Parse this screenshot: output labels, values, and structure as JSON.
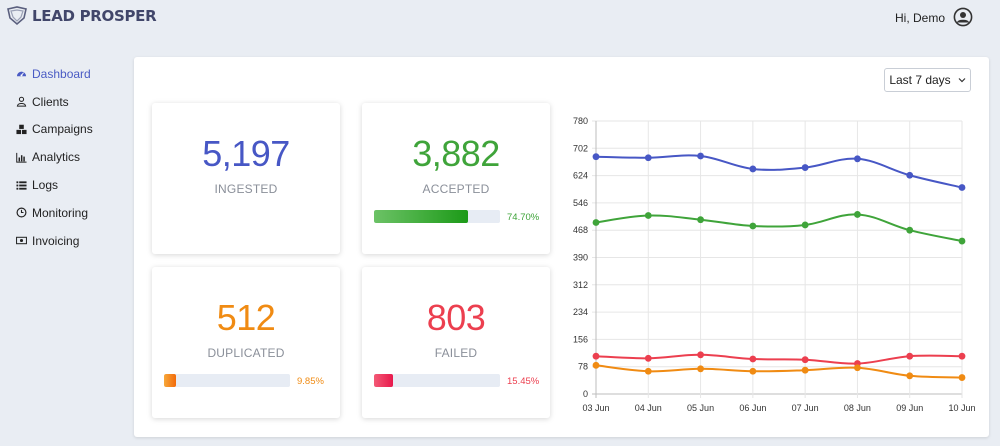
{
  "brand": {
    "name": "LEAD PROSPER"
  },
  "header": {
    "greeting": "Hi, Demo",
    "user_icon": "user-circle-icon"
  },
  "sidebar": {
    "items": [
      {
        "label": "Dashboard",
        "icon": "dashboard-icon",
        "active": true
      },
      {
        "label": "Clients",
        "icon": "user-icon",
        "active": false
      },
      {
        "label": "Campaigns",
        "icon": "cubes-icon",
        "active": false
      },
      {
        "label": "Analytics",
        "icon": "bar-chart-icon",
        "active": false
      },
      {
        "label": "Logs",
        "icon": "list-icon",
        "active": false
      },
      {
        "label": "Monitoring",
        "icon": "clock-icon",
        "active": false
      },
      {
        "label": "Invoicing",
        "icon": "money-icon",
        "active": false
      }
    ]
  },
  "filters": {
    "date_range": "Last 7 days"
  },
  "cards": {
    "ingested": {
      "value": "5,197",
      "label": "INGESTED",
      "color": "#4757c5"
    },
    "accepted": {
      "value": "3,882",
      "label": "ACCEPTED",
      "color": "#3fa43a",
      "percent": "74.70%",
      "fraction": 0.747
    },
    "duplicated": {
      "value": "512",
      "label": "DUPLICATED",
      "color": "#f08b13",
      "percent": "9.85%",
      "fraction": 0.0985
    },
    "failed": {
      "value": "803",
      "label": "FAILED",
      "color": "#ec3f4f",
      "percent": "15.45%",
      "fraction": 0.1545
    }
  },
  "chart_data": {
    "type": "line",
    "categories": [
      "03 Jun",
      "04 Jun",
      "05 Jun",
      "06 Jun",
      "07 Jun",
      "08 Jun",
      "09 Jun",
      "10 Jun"
    ],
    "y_ticks": [
      "0",
      "78",
      "156",
      "234",
      "312",
      "390",
      "468",
      "546",
      "624",
      "702",
      "780"
    ],
    "ylim": [
      0,
      780
    ],
    "grid": true,
    "series": [
      {
        "color": "#4757c5",
        "values": [
          678,
          675,
          680,
          643,
          647,
          672,
          625,
          590
        ]
      },
      {
        "color": "#3fa43a",
        "values": [
          490,
          510,
          498,
          480,
          483,
          513,
          468,
          437
        ]
      },
      {
        "color": "#ec3f4f",
        "values": [
          108,
          102,
          112,
          100,
          98,
          87,
          108,
          108
        ]
      },
      {
        "color": "#f08b13",
        "values": [
          82,
          65,
          72,
          65,
          68,
          75,
          52,
          47
        ]
      }
    ]
  }
}
